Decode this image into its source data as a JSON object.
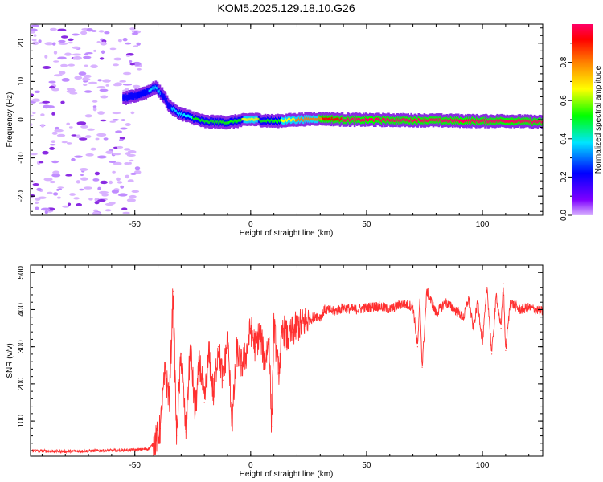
{
  "title": "KOM5.2025.129.18.10.G26",
  "chart_data": [
    {
      "type": "heatmap",
      "xlabel": "Height of straight line (km)",
      "ylabel": "Frequency (Hz)",
      "xlim": [
        -95,
        126
      ],
      "ylim": [
        -25,
        25
      ],
      "x_ticks": [
        -50,
        0,
        50,
        100
      ],
      "x_tick_labels": [
        "-50",
        "0",
        "50",
        "100"
      ],
      "y_ticks": [
        20,
        10,
        0,
        -10,
        -20
      ],
      "y_tick_labels": [
        "20",
        "10",
        "0",
        "-10",
        "-20"
      ],
      "colorbar": {
        "label": "Normalized spectral amplitude",
        "range": [
          0,
          1
        ],
        "ticks": [
          0.0,
          0.2,
          0.4,
          0.6,
          0.8
        ],
        "tick_labels": [
          "0.0",
          "0.2",
          "0.4",
          "0.6",
          "0.8"
        ],
        "colors": [
          "#d9b3ff",
          "#7f00ff",
          "#0000ff",
          "#00e5ff",
          "#00ff00",
          "#ffff00",
          "#ff8000",
          "#ff0000",
          "#ff0066"
        ]
      },
      "ridge": {
        "x": [
          -55,
          -50,
          -45,
          -41,
          -38,
          -35,
          -32,
          -28,
          -24,
          -20,
          -10,
          0,
          10,
          20,
          30,
          40,
          60,
          80,
          100,
          110,
          126
        ],
        "y": [
          5.5,
          6.2,
          7.2,
          8.5,
          6.5,
          3.5,
          2.0,
          1.0,
          0.3,
          -0.5,
          -0.7,
          0.1,
          -0.4,
          0.0,
          0.3,
          0.0,
          -0.1,
          -0.2,
          -0.4,
          -0.3,
          -0.6
        ],
        "amplitude": [
          0.2,
          0.25,
          0.3,
          0.35,
          0.3,
          0.3,
          0.35,
          0.4,
          0.45,
          0.5,
          0.5,
          0.6,
          0.5,
          0.7,
          0.8,
          0.95,
          0.98,
          0.98,
          0.98,
          0.98,
          0.98
        ]
      },
      "noise_region": {
        "x_range": [
          -95,
          -48
        ],
        "y_range": [
          -25,
          25
        ],
        "amplitude_max": 0.2
      }
    },
    {
      "type": "line",
      "xlabel": "Height of straight line (km)",
      "ylabel": "SNR (v/v)",
      "xlim": [
        -95,
        126
      ],
      "ylim": [
        5,
        520
      ],
      "x_ticks": [
        -50,
        0,
        50,
        100
      ],
      "x_tick_labels": [
        "-50",
        "0",
        "50",
        "100"
      ],
      "y_ticks": [
        100,
        200,
        300,
        400,
        500
      ],
      "y_tick_labels": [
        "100",
        "200",
        "300",
        "400",
        "500"
      ],
      "series": [
        {
          "color": "#ff3030",
          "x": [
            -95,
            -80,
            -65,
            -50,
            -44,
            -41,
            -39,
            -37,
            -35,
            -33.5,
            -32,
            -30,
            -28,
            -26,
            -24,
            -22,
            -20,
            -18,
            -16,
            -14,
            -12,
            -10,
            -8,
            -6,
            -4,
            -2,
            0,
            2,
            4,
            6,
            8,
            9,
            10,
            12,
            14,
            16,
            18,
            20,
            22,
            24,
            26,
            28,
            30,
            32,
            36,
            40,
            45,
            50,
            55,
            60,
            65,
            70,
            72,
            73,
            74,
            76,
            80,
            84,
            88,
            92,
            94,
            96,
            98,
            100,
            102,
            104,
            106,
            108,
            109,
            110,
            112,
            116,
            120,
            126
          ],
          "y": [
            20,
            18,
            20,
            22,
            25,
            45,
            80,
            230,
            160,
            450,
            60,
            280,
            70,
            300,
            120,
            260,
            150,
            280,
            170,
            300,
            210,
            320,
            95,
            290,
            250,
            280,
            350,
            300,
            340,
            260,
            320,
            85,
            360,
            230,
            350,
            320,
            340,
            355,
            360,
            370,
            375,
            385,
            380,
            400,
            395,
            405,
            400,
            405,
            410,
            400,
            415,
            410,
            300,
            420,
            245,
            450,
            390,
            420,
            400,
            380,
            430,
            350,
            420,
            310,
            460,
            280,
            440,
            350,
            470,
            290,
            420,
            400,
            405,
            395
          ]
        }
      ]
    }
  ]
}
